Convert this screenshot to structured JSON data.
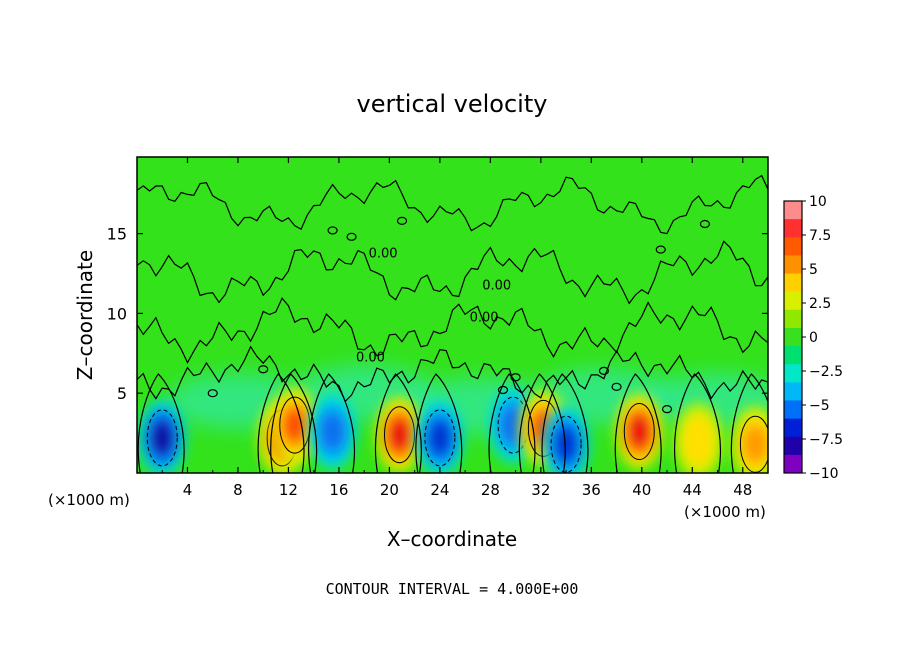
{
  "chart_data": {
    "type": "heatmap",
    "title": "vertical velocity",
    "xlabel": "X–coordinate",
    "ylabel": "Z–coordinate",
    "x_unit_left": "(×1000 m)",
    "x_unit_right": "(×1000 m)",
    "footer": "CONTOUR INTERVAL = 4.000E+00",
    "xlim": [
      0,
      50
    ],
    "ylim": [
      0,
      19.8
    ],
    "x_ticks": [
      "4",
      "8",
      "12",
      "16",
      "20",
      "24",
      "28",
      "32",
      "36",
      "40",
      "44",
      "48"
    ],
    "y_ticks": [
      "5",
      "10",
      "15"
    ],
    "contour_label": "0.00",
    "colorbar": {
      "range": [
        -10,
        10
      ],
      "labels": [
        "10",
        "7.5",
        "5",
        "2.5",
        "0",
        "−2.5",
        "−5",
        "−7.5",
        "−10"
      ],
      "colors": [
        "#ff8c8c",
        "#ff3030",
        "#ff5a00",
        "#ff9000",
        "#ffd000",
        "#d8f000",
        "#90e800",
        "#38e020",
        "#00e070",
        "#00e8c8",
        "#00b8f8",
        "#0070f8",
        "#0020d8",
        "#2000a8",
        "#8000c0"
      ]
    },
    "features": [
      {
        "x": 2.0,
        "z": 2.2,
        "w": -8
      },
      {
        "x": 11.5,
        "z": 2.2,
        "w": 7
      },
      {
        "x": 12.5,
        "z": 3.0,
        "w": 6
      },
      {
        "x": 15.5,
        "z": 2.6,
        "w": -4
      },
      {
        "x": 20.8,
        "z": 2.4,
        "w": 7.5
      },
      {
        "x": 24.0,
        "z": 2.2,
        "w": -7
      },
      {
        "x": 29.8,
        "z": 3.0,
        "w": -5
      },
      {
        "x": 32.2,
        "z": 2.8,
        "w": 6
      },
      {
        "x": 34.0,
        "z": 1.8,
        "w": -6
      },
      {
        "x": 39.8,
        "z": 2.6,
        "w": 8
      },
      {
        "x": 44.5,
        "z": 2.0,
        "w": 3
      },
      {
        "x": 49.0,
        "z": 1.8,
        "w": 5
      }
    ]
  }
}
